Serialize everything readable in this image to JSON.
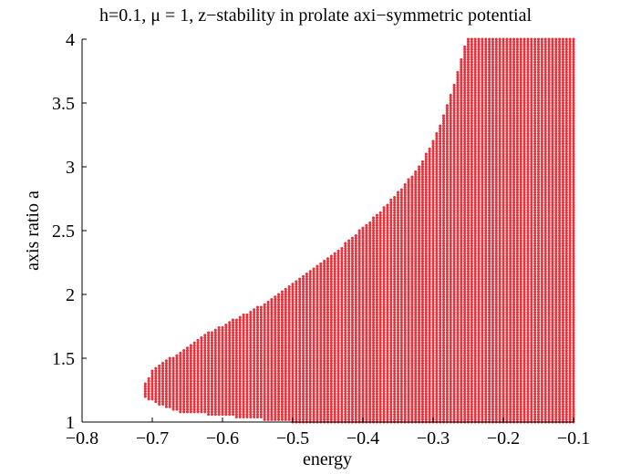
{
  "chart_data": {
    "type": "scatter",
    "title": "h=0.1, μ = 1, z−stability in prolate axi−symmetric potential",
    "xlabel": "energy",
    "ylabel": "axis ratio a",
    "xlim": [
      -0.8,
      -0.1
    ],
    "ylim": [
      1,
      4
    ],
    "xticks": [
      -0.8,
      -0.7,
      -0.6,
      -0.5,
      -0.4,
      -0.3,
      -0.2,
      -0.1
    ],
    "xtick_labels": [
      "−0.8",
      "−0.7",
      "−0.6",
      "−0.5",
      "−0.4",
      "−0.3",
      "−0.2",
      "−0.1"
    ],
    "yticks": [
      1,
      1.5,
      2,
      2.5,
      3,
      3.5,
      4
    ],
    "ytick_labels": [
      "1",
      "1.5",
      "2",
      "2.5",
      "3",
      "3.5",
      "4"
    ],
    "grid": false,
    "box": false,
    "marker_color": "#e8303a",
    "grid_spacing": {
      "energy_step": 0.005,
      "axis_ratio_step": 0.02
    },
    "series": [
      {
        "stable_region_boundary": {
          "energy_ranges_by_axis_ratio": [
            {
              "a": 1.0,
              "energy_min": -0.5,
              "energy_max": -0.1
            },
            {
              "a": 1.08,
              "energy_min": -0.66,
              "energy_max": -0.1
            },
            {
              "a": 1.14,
              "energy_min": -0.69,
              "energy_max": -0.1
            },
            {
              "a": 1.2,
              "energy_min": -0.713,
              "energy_max": -0.1
            },
            {
              "a": 1.3,
              "energy_min": -0.712,
              "energy_max": -0.1
            },
            {
              "a": 1.4,
              "energy_min": -0.7,
              "energy_max": -0.1
            },
            {
              "a": 1.5,
              "energy_min": -0.675,
              "energy_max": -0.1
            },
            {
              "a": 1.6,
              "energy_min": -0.645,
              "energy_max": -0.1
            },
            {
              "a": 1.7,
              "energy_min": -0.62,
              "energy_max": -0.1
            },
            {
              "a": 1.8,
              "energy_min": -0.585,
              "energy_max": -0.1
            },
            {
              "a": 1.9,
              "energy_min": -0.55,
              "energy_max": -0.1
            },
            {
              "a": 2.0,
              "energy_min": -0.52,
              "energy_max": -0.1
            },
            {
              "a": 2.2,
              "energy_min": -0.47,
              "energy_max": -0.1
            },
            {
              "a": 2.4,
              "energy_min": -0.425,
              "energy_max": -0.1
            },
            {
              "a": 2.6,
              "energy_min": -0.385,
              "energy_max": -0.1
            },
            {
              "a": 2.8,
              "energy_min": -0.35,
              "energy_max": -0.1
            },
            {
              "a": 3.0,
              "energy_min": -0.32,
              "energy_max": -0.1
            },
            {
              "a": 3.2,
              "energy_min": -0.3,
              "energy_max": -0.1
            },
            {
              "a": 3.4,
              "energy_min": -0.285,
              "energy_max": -0.1
            },
            {
              "a": 3.6,
              "energy_min": -0.273,
              "energy_max": -0.1
            },
            {
              "a": 3.8,
              "energy_min": -0.262,
              "energy_max": -0.1
            },
            {
              "a": 4.0,
              "energy_min": -0.253,
              "energy_max": -0.1
            }
          ]
        }
      }
    ]
  }
}
